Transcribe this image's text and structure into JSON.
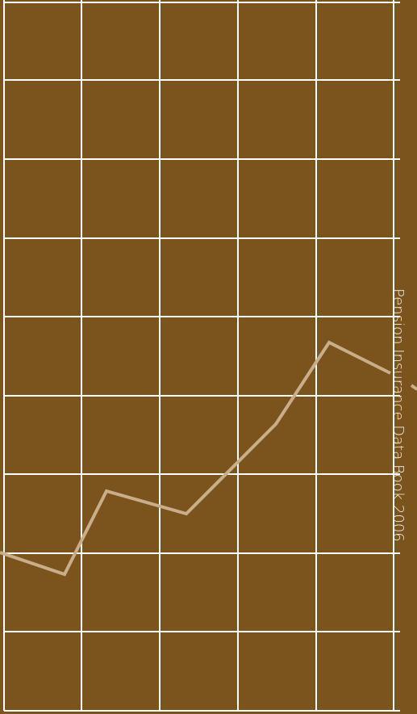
{
  "cover": {
    "title": "Pension Insurance Data Book 2006"
  }
}
